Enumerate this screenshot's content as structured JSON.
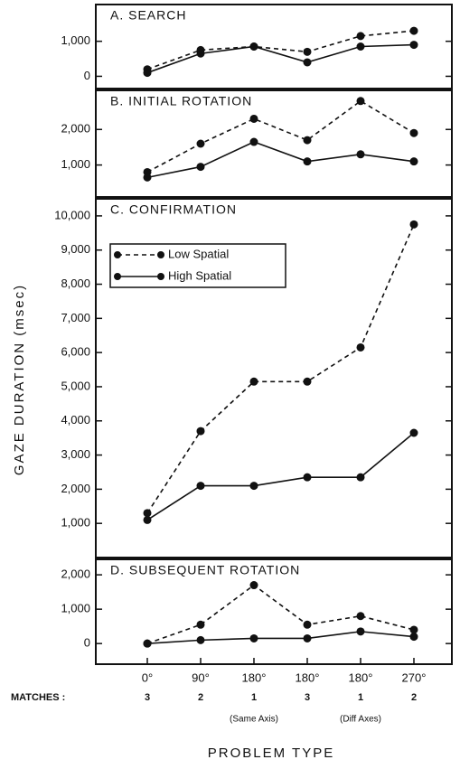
{
  "y_axis_label": "GAZE DURATION (msec)",
  "x_axis_label": "PROBLEM TYPE",
  "matches_label": "MATCHES :",
  "matches": [
    "3",
    "2",
    "1",
    "3",
    "1",
    "2"
  ],
  "category_notes": [
    null,
    null,
    "(Same Axis)",
    null,
    "(Diff Axes)",
    null
  ],
  "chart_data": [
    {
      "type": "line",
      "title": "A. SEARCH",
      "series": [
        {
          "color": "#111111",
          "dash": "dashed",
          "values": [
            200,
            750,
            850,
            700,
            1150,
            1300
          ]
        },
        {
          "color": "#111111",
          "dash": "solid",
          "values": [
            100,
            650,
            850,
            400,
            850,
            900
          ]
        }
      ],
      "ylim": [
        -350,
        2050
      ],
      "yticks": [
        0,
        {
          "value": 1000,
          "label": "1,000"
        }
      ]
    },
    {
      "type": "line",
      "title": "B. INITIAL ROTATION",
      "series": [
        {
          "color": "#111111",
          "dash": "dashed",
          "values": [
            800,
            1600,
            2300,
            1700,
            2800,
            1900
          ]
        },
        {
          "color": "#111111",
          "dash": "solid",
          "values": [
            650,
            950,
            1650,
            1100,
            1300,
            1100
          ]
        }
      ],
      "ylim": [
        100,
        3100
      ],
      "yticks": [
        {
          "value": 1000,
          "label": "1,000"
        },
        {
          "value": 2000,
          "label": "2,000"
        }
      ]
    },
    {
      "type": "line",
      "title": "C. CONFIRMATION",
      "legend": "upper left",
      "series": [
        {
          "name": "Low Spatial",
          "color": "#111111",
          "dash": "dashed",
          "values": [
            1300,
            3700,
            5150,
            5150,
            6150,
            9750
          ]
        },
        {
          "name": "High Spatial",
          "color": "#111111",
          "dash": "solid",
          "values": [
            1100,
            2100,
            2100,
            2350,
            2350,
            3650
          ]
        }
      ],
      "ylim": [
        0,
        10500
      ],
      "yticks": [
        {
          "value": 1000,
          "label": "1,000"
        },
        {
          "value": 2000,
          "label": "2,000"
        },
        {
          "value": 3000,
          "label": "3,000"
        },
        {
          "value": 4000,
          "label": "4,000"
        },
        {
          "value": 5000,
          "label": "5,000"
        },
        {
          "value": 6000,
          "label": "6,000"
        },
        {
          "value": 7000,
          "label": "7,000"
        },
        {
          "value": 8000,
          "label": "8,000"
        },
        {
          "value": 9000,
          "label": "9,000"
        },
        {
          "value": 10000,
          "label": "10,000"
        }
      ]
    },
    {
      "type": "line",
      "title": "D. SUBSEQUENT ROTATION",
      "categories": [
        "0°",
        "90°",
        "180°",
        "180°",
        "180°",
        "270°"
      ],
      "series": [
        {
          "color": "#111111",
          "dash": "dashed",
          "values": [
            0,
            550,
            1700,
            550,
            800,
            400
          ]
        },
        {
          "color": "#111111",
          "dash": "solid",
          "values": [
            0,
            100,
            150,
            150,
            350,
            200
          ]
        }
      ],
      "ylim": [
        -600,
        2450
      ],
      "yticks": [
        0,
        {
          "value": 1000,
          "label": "1,000"
        },
        {
          "value": 2000,
          "label": "2,000"
        }
      ]
    }
  ]
}
